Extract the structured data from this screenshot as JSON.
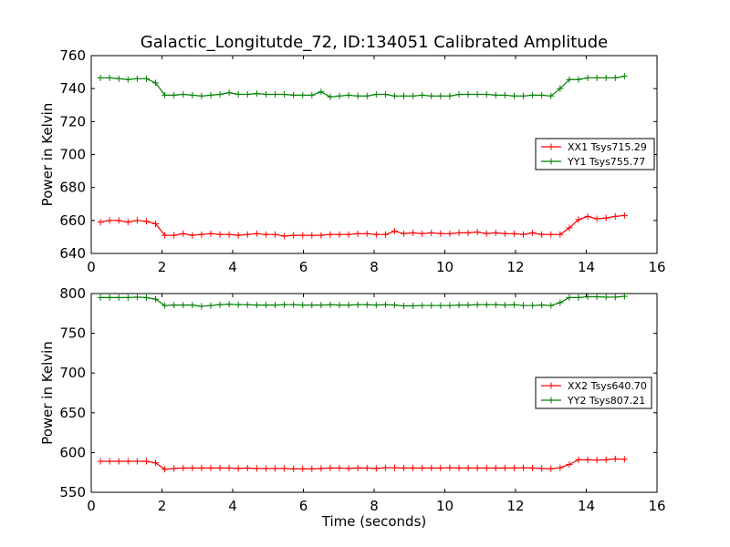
{
  "figure": {
    "title": "Galactic_Longitutde_72, ID:134051 Calibrated Amplitude"
  },
  "chart_data": [
    {
      "type": "line",
      "title": "Galactic_Longitutde_72, ID:134051 Calibrated Amplitude",
      "xlabel": "",
      "ylabel": "Power in Kelvin",
      "xlim": [
        0,
        16
      ],
      "ylim": [
        640,
        760
      ],
      "xticks": [
        "0",
        "2",
        "4",
        "6",
        "8",
        "10",
        "12",
        "14",
        "16"
      ],
      "yticks": [
        "640",
        "660",
        "680",
        "700",
        "720",
        "740",
        "760"
      ],
      "grid": false,
      "legend_position": "center-right",
      "x": [
        0.26,
        0.52,
        0.78,
        1.04,
        1.3,
        1.56,
        1.82,
        2.08,
        2.34,
        2.6,
        2.86,
        3.12,
        3.38,
        3.64,
        3.9,
        4.16,
        4.42,
        4.68,
        4.94,
        5.2,
        5.46,
        5.72,
        5.98,
        6.24,
        6.5,
        6.76,
        7.02,
        7.28,
        7.54,
        7.8,
        8.06,
        8.32,
        8.58,
        8.84,
        9.1,
        9.36,
        9.62,
        9.88,
        10.14,
        10.4,
        10.66,
        10.92,
        11.18,
        11.44,
        11.7,
        11.96,
        12.22,
        12.48,
        12.74,
        13.0,
        13.26,
        13.52,
        13.78,
        14.04,
        14.3,
        14.56,
        14.82,
        15.08
      ],
      "series": [
        {
          "name": "XX1 Tsys715.29",
          "color": "#ff0000",
          "values": [
            659,
            660,
            660,
            659,
            660,
            659.5,
            658,
            651,
            651,
            652,
            651,
            651.5,
            652,
            651.5,
            651.5,
            651,
            651.5,
            652,
            651.5,
            651.5,
            650.5,
            651,
            651,
            651,
            651,
            651.5,
            651.5,
            651.5,
            652,
            652,
            651.5,
            651.5,
            653.5,
            652,
            652.5,
            652,
            652.5,
            652,
            652,
            652.5,
            652.5,
            653,
            652,
            652.5,
            652,
            652,
            651.5,
            652.5,
            651.5,
            651.5,
            651.5,
            655.5,
            660.5,
            662.5,
            661,
            661.5,
            662.5,
            663
          ]
        },
        {
          "name": "YY1 Tsys755.77",
          "color": "#008000",
          "values": [
            746.5,
            746.5,
            746,
            745.5,
            746,
            746,
            743.5,
            736,
            736,
            736.5,
            736,
            735.5,
            736,
            736.5,
            737.5,
            736.5,
            736.5,
            737,
            736.5,
            736.5,
            736.5,
            736,
            736,
            736,
            738,
            735,
            735.5,
            736,
            735.5,
            735.5,
            736.5,
            736.5,
            735.5,
            735.5,
            735.5,
            736,
            735.5,
            735.5,
            735.5,
            736.5,
            736.5,
            736.5,
            736.5,
            736,
            736,
            735.5,
            735.5,
            736,
            736,
            735.5,
            740,
            745.5,
            745.5,
            746.5,
            746.5,
            746.5,
            746.5,
            747.5
          ]
        }
      ]
    },
    {
      "type": "line",
      "title": "",
      "xlabel": "Time (seconds)",
      "ylabel": "Power in Kelvin",
      "xlim": [
        0,
        16
      ],
      "ylim": [
        550,
        800
      ],
      "xticks": [
        "0",
        "2",
        "4",
        "6",
        "8",
        "10",
        "12",
        "14",
        "16"
      ],
      "yticks": [
        "550",
        "600",
        "650",
        "700",
        "750",
        "800"
      ],
      "grid": false,
      "legend_position": "center-right",
      "x": [
        0.26,
        0.52,
        0.78,
        1.04,
        1.3,
        1.56,
        1.82,
        2.08,
        2.34,
        2.6,
        2.86,
        3.12,
        3.38,
        3.64,
        3.9,
        4.16,
        4.42,
        4.68,
        4.94,
        5.2,
        5.46,
        5.72,
        5.98,
        6.24,
        6.5,
        6.76,
        7.02,
        7.28,
        7.54,
        7.8,
        8.06,
        8.32,
        8.58,
        8.84,
        9.1,
        9.36,
        9.62,
        9.88,
        10.14,
        10.4,
        10.66,
        10.92,
        11.18,
        11.44,
        11.7,
        11.96,
        12.22,
        12.48,
        12.74,
        13.0,
        13.26,
        13.52,
        13.78,
        14.04,
        14.3,
        14.56,
        14.82,
        15.08
      ],
      "series": [
        {
          "name": "XX2 Tsys640.70",
          "color": "#ff0000",
          "values": [
            589,
            589,
            589,
            589,
            589,
            589,
            587,
            579,
            580,
            580.5,
            580.5,
            580.5,
            580.5,
            580.5,
            580.5,
            580,
            580.5,
            580,
            580,
            580,
            580,
            579.5,
            579.5,
            579.5,
            580,
            580.5,
            580.5,
            580,
            580.5,
            580.5,
            580,
            581,
            581,
            580.5,
            580.5,
            580.5,
            580.5,
            580.5,
            581,
            580.5,
            580.5,
            580.5,
            580.5,
            580.5,
            580.5,
            580.5,
            581,
            580.5,
            580,
            579.5,
            581,
            585,
            591,
            591,
            590.5,
            591,
            592,
            591.5
          ]
        },
        {
          "name": "YY2 Tsys807.21",
          "color": "#008000",
          "values": [
            795,
            795,
            795,
            795,
            795.5,
            795,
            793,
            785,
            785.5,
            785.5,
            785.5,
            784,
            785,
            786,
            786.5,
            786,
            786,
            785.5,
            785.5,
            785.5,
            786,
            786,
            785.5,
            785.5,
            785.5,
            786,
            785.5,
            785.5,
            786,
            786,
            785.5,
            786,
            785.5,
            784.5,
            784.5,
            785,
            785,
            785,
            785,
            785.5,
            785.5,
            786,
            786,
            786,
            785.5,
            786,
            785,
            785,
            785.5,
            785,
            788.5,
            795,
            795,
            796,
            796,
            795.5,
            795.5,
            796.5
          ]
        }
      ]
    }
  ]
}
